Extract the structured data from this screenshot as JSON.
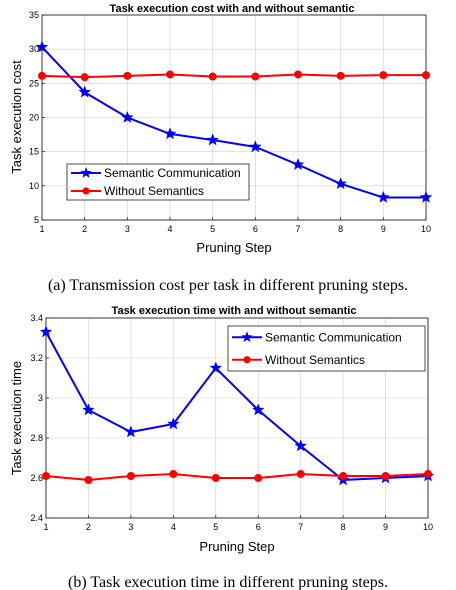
{
  "chart_data": [
    {
      "type": "line",
      "title": "Task execution cost with and without semantic",
      "xlabel": "Pruning Step",
      "ylabel": "Task execution cost",
      "x": [
        1,
        2,
        3,
        4,
        5,
        6,
        7,
        8,
        9,
        10
      ],
      "xlim": [
        1,
        10
      ],
      "ylim": [
        5,
        35
      ],
      "yticks": [
        5,
        10,
        15,
        20,
        25,
        30,
        35
      ],
      "grid": true,
      "legend_position": "lower-left",
      "series": [
        {
          "name": "Semantic Communication",
          "color": "#0000ff",
          "marker": "star",
          "values": [
            30.3,
            23.7,
            20.0,
            17.6,
            16.7,
            15.7,
            13.1,
            10.3,
            8.3,
            8.3
          ]
        },
        {
          "name": "Without Semantics",
          "color": "#ff0000",
          "marker": "circle",
          "values": [
            26.1,
            25.9,
            26.1,
            26.3,
            26.0,
            26.0,
            26.3,
            26.1,
            26.2,
            26.2
          ]
        }
      ],
      "caption": "(a)  Transmission cost per task in different pruning steps."
    },
    {
      "type": "line",
      "title": "Task execution time with and without semantic",
      "xlabel": "Pruning Step",
      "ylabel": "Task execution time",
      "x": [
        1,
        2,
        3,
        4,
        5,
        6,
        7,
        8,
        9,
        10
      ],
      "xlim": [
        1,
        10
      ],
      "ylim": [
        2.4,
        3.4
      ],
      "yticks": [
        2.4,
        2.6,
        2.8,
        3,
        3.2,
        3.4
      ],
      "grid": true,
      "legend_position": "top-right",
      "series": [
        {
          "name": "Semantic Communication",
          "color": "#0000ff",
          "marker": "star",
          "values": [
            3.33,
            2.94,
            2.83,
            2.87,
            3.15,
            2.94,
            2.76,
            2.59,
            2.6,
            2.61
          ]
        },
        {
          "name": "Without Semantics",
          "color": "#ff0000",
          "marker": "circle",
          "values": [
            2.61,
            2.59,
            2.61,
            2.62,
            2.6,
            2.6,
            2.62,
            2.61,
            2.61,
            2.62
          ]
        }
      ],
      "caption": "(b)  Task execution time in different pruning steps."
    }
  ]
}
